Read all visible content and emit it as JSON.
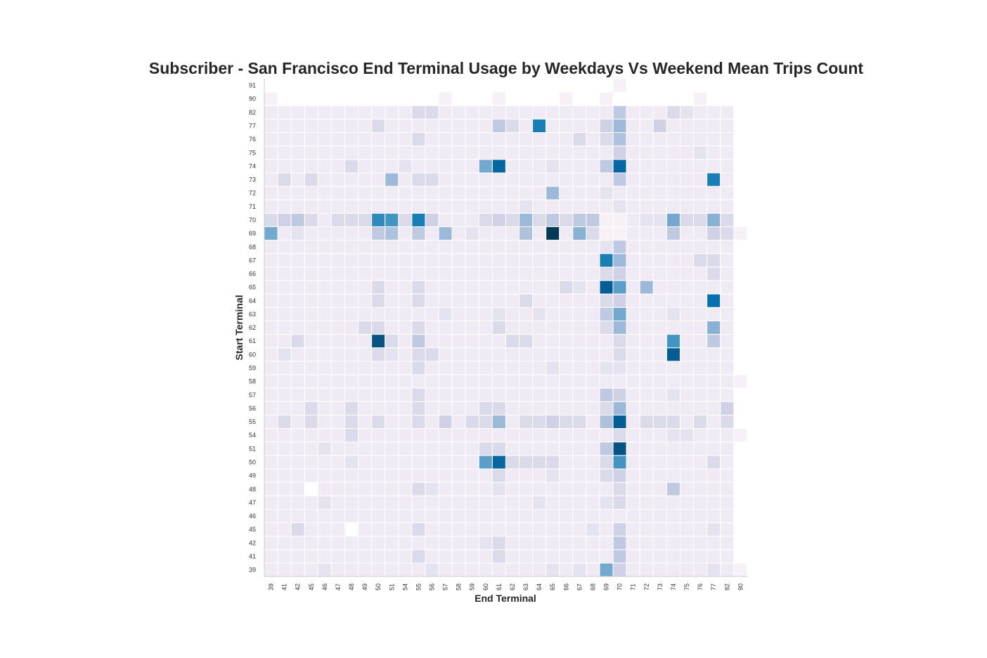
{
  "chart_data": {
    "type": "heatmap",
    "title": "Subscriber - San Francisco End Terminal Usage by Weekdays Vs Weekend Mean Trips Count",
    "xlabel": "End Terminal",
    "ylabel": "Start Terminal",
    "x_categories": [
      "39",
      "41",
      "42",
      "45",
      "46",
      "47",
      "48",
      "49",
      "50",
      "51",
      "54",
      "55",
      "56",
      "57",
      "58",
      "59",
      "60",
      "61",
      "62",
      "63",
      "64",
      "65",
      "66",
      "67",
      "68",
      "69",
      "70",
      "71",
      "72",
      "73",
      "74",
      "75",
      "76",
      "77",
      "82",
      "90"
    ],
    "y_categories": [
      "91",
      "90",
      "82",
      "77",
      "76",
      "75",
      "74",
      "73",
      "72",
      "71",
      "70",
      "69",
      "68",
      "67",
      "66",
      "65",
      "64",
      "63",
      "62",
      "61",
      "60",
      "59",
      "58",
      "57",
      "56",
      "55",
      "54",
      "51",
      "50",
      "49",
      "48",
      "47",
      "46",
      "45",
      "42",
      "41",
      "39"
    ],
    "default_value": 1,
    "vmax": 10,
    "cells": [
      {
        "y": "91",
        "x": "70",
        "v": 0.5
      },
      {
        "y": "90",
        "x": "39",
        "v": 0.5
      },
      {
        "y": "90",
        "x": "57",
        "v": 0.5
      },
      {
        "y": "90",
        "x": "61",
        "v": 0.5
      },
      {
        "y": "90",
        "x": "66",
        "v": 0.5
      },
      {
        "y": "90",
        "x": "69",
        "v": 0.5
      },
      {
        "y": "90",
        "x": "76",
        "v": 0.5
      },
      {
        "y": "82",
        "x": "55",
        "v": 2
      },
      {
        "y": "82",
        "x": "56",
        "v": 2
      },
      {
        "y": "82",
        "x": "70",
        "v": 3
      },
      {
        "y": "82",
        "x": "74",
        "v": 2
      },
      {
        "y": "82",
        "x": "75",
        "v": 1.5
      },
      {
        "y": "77",
        "x": "50",
        "v": 2
      },
      {
        "y": "77",
        "x": "61",
        "v": 3
      },
      {
        "y": "77",
        "x": "62",
        "v": 2
      },
      {
        "y": "77",
        "x": "64",
        "v": 7
      },
      {
        "y": "77",
        "x": "69",
        "v": 2.5
      },
      {
        "y": "77",
        "x": "70",
        "v": 4
      },
      {
        "y": "77",
        "x": "73",
        "v": 2.5
      },
      {
        "y": "76",
        "x": "55",
        "v": 2
      },
      {
        "y": "76",
        "x": "67",
        "v": 2
      },
      {
        "y": "76",
        "x": "69",
        "v": 2
      },
      {
        "y": "76",
        "x": "70",
        "v": 3.5
      },
      {
        "y": "75",
        "x": "70",
        "v": 2.5
      },
      {
        "y": "75",
        "x": "76",
        "v": 1.5
      },
      {
        "y": "74",
        "x": "48",
        "v": 2
      },
      {
        "y": "74",
        "x": "54",
        "v": 1.5
      },
      {
        "y": "74",
        "x": "60",
        "v": 5
      },
      {
        "y": "74",
        "x": "61",
        "v": 8
      },
      {
        "y": "74",
        "x": "65",
        "v": 1.5
      },
      {
        "y": "74",
        "x": "69",
        "v": 3
      },
      {
        "y": "74",
        "x": "70",
        "v": 8
      },
      {
        "y": "73",
        "x": "41",
        "v": 2
      },
      {
        "y": "73",
        "x": "45",
        "v": 2
      },
      {
        "y": "73",
        "x": "51",
        "v": 4
      },
      {
        "y": "73",
        "x": "55",
        "v": 2
      },
      {
        "y": "73",
        "x": "56",
        "v": 2
      },
      {
        "y": "73",
        "x": "70",
        "v": 3
      },
      {
        "y": "73",
        "x": "77",
        "v": 7
      },
      {
        "y": "72",
        "x": "65",
        "v": 4
      },
      {
        "y": "72",
        "x": "69",
        "v": 1.5
      },
      {
        "y": "71",
        "x": "63",
        "v": 1.5
      },
      {
        "y": "71",
        "x": "70",
        "v": 1.5
      },
      {
        "y": "70",
        "x": "39",
        "v": 2
      },
      {
        "y": "70",
        "x": "41",
        "v": 2.5
      },
      {
        "y": "70",
        "x": "42",
        "v": 3
      },
      {
        "y": "70",
        "x": "45",
        "v": 2
      },
      {
        "y": "70",
        "x": "47",
        "v": 2
      },
      {
        "y": "70",
        "x": "48",
        "v": 2
      },
      {
        "y": "70",
        "x": "49",
        "v": 2
      },
      {
        "y": "70",
        "x": "50",
        "v": 6.5
      },
      {
        "y": "70",
        "x": "51",
        "v": 6
      },
      {
        "y": "70",
        "x": "54",
        "v": 2
      },
      {
        "y": "70",
        "x": "55",
        "v": 7
      },
      {
        "y": "70",
        "x": "56",
        "v": 2.5
      },
      {
        "y": "70",
        "x": "60",
        "v": 2
      },
      {
        "y": "70",
        "x": "61",
        "v": 2.5
      },
      {
        "y": "70",
        "x": "62",
        "v": 2
      },
      {
        "y": "70",
        "x": "63",
        "v": 4
      },
      {
        "y": "70",
        "x": "64",
        "v": 2
      },
      {
        "y": "70",
        "x": "65",
        "v": 3
      },
      {
        "y": "70",
        "x": "66",
        "v": 2
      },
      {
        "y": "70",
        "x": "67",
        "v": 3
      },
      {
        "y": "70",
        "x": "68",
        "v": 3
      },
      {
        "y": "70",
        "x": "69",
        "v": 0.5
      },
      {
        "y": "70",
        "x": "70",
        "v": 0.5
      },
      {
        "y": "70",
        "x": "72",
        "v": 1.5
      },
      {
        "y": "70",
        "x": "73",
        "v": 1.5
      },
      {
        "y": "70",
        "x": "74",
        "v": 5
      },
      {
        "y": "70",
        "x": "75",
        "v": 2
      },
      {
        "y": "70",
        "x": "76",
        "v": 2
      },
      {
        "y": "70",
        "x": "77",
        "v": 4.5
      },
      {
        "y": "70",
        "x": "82",
        "v": 2
      },
      {
        "y": "69",
        "x": "39",
        "v": 5
      },
      {
        "y": "69",
        "x": "42",
        "v": 1.5
      },
      {
        "y": "69",
        "x": "50",
        "v": 3
      },
      {
        "y": "69",
        "x": "51",
        "v": 3.5
      },
      {
        "y": "69",
        "x": "55",
        "v": 3
      },
      {
        "y": "69",
        "x": "57",
        "v": 4
      },
      {
        "y": "69",
        "x": "59",
        "v": 1.5
      },
      {
        "y": "69",
        "x": "63",
        "v": 3.5
      },
      {
        "y": "69",
        "x": "65",
        "v": 10
      },
      {
        "y": "69",
        "x": "67",
        "v": 4.5
      },
      {
        "y": "69",
        "x": "68",
        "v": 2
      },
      {
        "y": "69",
        "x": "69",
        "v": 0.5
      },
      {
        "y": "69",
        "x": "70",
        "v": 0.5
      },
      {
        "y": "69",
        "x": "74",
        "v": 3
      },
      {
        "y": "69",
        "x": "77",
        "v": 2.5
      },
      {
        "y": "69",
        "x": "82",
        "v": 2
      },
      {
        "y": "69",
        "x": "90",
        "v": 0.5
      },
      {
        "y": "68",
        "x": "69",
        "v": 1.5
      },
      {
        "y": "68",
        "x": "70",
        "v": 3
      },
      {
        "y": "67",
        "x": "69",
        "v": 7
      },
      {
        "y": "67",
        "x": "70",
        "v": 4
      },
      {
        "y": "67",
        "x": "76",
        "v": 2
      },
      {
        "y": "67",
        "x": "77",
        "v": 2
      },
      {
        "y": "66",
        "x": "69",
        "v": 2
      },
      {
        "y": "66",
        "x": "70",
        "v": 2.5
      },
      {
        "y": "66",
        "x": "77",
        "v": 2
      },
      {
        "y": "65",
        "x": "50",
        "v": 2
      },
      {
        "y": "65",
        "x": "55",
        "v": 2
      },
      {
        "y": "65",
        "x": "66",
        "v": 2
      },
      {
        "y": "65",
        "x": "67",
        "v": 1.5
      },
      {
        "y": "65",
        "x": "69",
        "v": 8.5
      },
      {
        "y": "65",
        "x": "70",
        "v": 5.5
      },
      {
        "y": "65",
        "x": "72",
        "v": 4
      },
      {
        "y": "64",
        "x": "50",
        "v": 2
      },
      {
        "y": "64",
        "x": "55",
        "v": 2
      },
      {
        "y": "64",
        "x": "63",
        "v": 2
      },
      {
        "y": "64",
        "x": "69",
        "v": 2
      },
      {
        "y": "64",
        "x": "70",
        "v": 2.5
      },
      {
        "y": "64",
        "x": "77",
        "v": 7.5
      },
      {
        "y": "63",
        "x": "57",
        "v": 1.5
      },
      {
        "y": "63",
        "x": "61",
        "v": 1.5
      },
      {
        "y": "63",
        "x": "64",
        "v": 1.5
      },
      {
        "y": "63",
        "x": "69",
        "v": 3
      },
      {
        "y": "63",
        "x": "70",
        "v": 5
      },
      {
        "y": "63",
        "x": "74",
        "v": 1.5
      },
      {
        "y": "62",
        "x": "49",
        "v": 2
      },
      {
        "y": "62",
        "x": "50",
        "v": 2
      },
      {
        "y": "62",
        "x": "55",
        "v": 2
      },
      {
        "y": "62",
        "x": "61",
        "v": 2
      },
      {
        "y": "62",
        "x": "69",
        "v": 2
      },
      {
        "y": "62",
        "x": "70",
        "v": 4
      },
      {
        "y": "62",
        "x": "77",
        "v": 4.5
      },
      {
        "y": "61",
        "x": "42",
        "v": 2
      },
      {
        "y": "61",
        "x": "50",
        "v": 9
      },
      {
        "y": "61",
        "x": "51",
        "v": 2
      },
      {
        "y": "61",
        "x": "55",
        "v": 3
      },
      {
        "y": "61",
        "x": "62",
        "v": 2
      },
      {
        "y": "61",
        "x": "63",
        "v": 2
      },
      {
        "y": "61",
        "x": "70",
        "v": 2
      },
      {
        "y": "61",
        "x": "74",
        "v": 6
      },
      {
        "y": "61",
        "x": "77",
        "v": 3
      },
      {
        "y": "60",
        "x": "41",
        "v": 1.5
      },
      {
        "y": "60",
        "x": "50",
        "v": 2
      },
      {
        "y": "60",
        "x": "51",
        "v": 1.5
      },
      {
        "y": "60",
        "x": "55",
        "v": 2
      },
      {
        "y": "60",
        "x": "56",
        "v": 2
      },
      {
        "y": "60",
        "x": "70",
        "v": 2
      },
      {
        "y": "60",
        "x": "74",
        "v": 8.5
      },
      {
        "y": "59",
        "x": "55",
        "v": 2
      },
      {
        "y": "59",
        "x": "65",
        "v": 1.5
      },
      {
        "y": "59",
        "x": "69",
        "v": 1.5
      },
      {
        "y": "59",
        "x": "70",
        "v": 1.5
      },
      {
        "y": "58",
        "x": "90",
        "v": 0.5
      },
      {
        "y": "57",
        "x": "55",
        "v": 2
      },
      {
        "y": "57",
        "x": "69",
        "v": 3
      },
      {
        "y": "57",
        "x": "70",
        "v": 2.5
      },
      {
        "y": "57",
        "x": "74",
        "v": 1.5
      },
      {
        "y": "56",
        "x": "45",
        "v": 2
      },
      {
        "y": "56",
        "x": "48",
        "v": 2
      },
      {
        "y": "56",
        "x": "55",
        "v": 2
      },
      {
        "y": "56",
        "x": "60",
        "v": 2
      },
      {
        "y": "56",
        "x": "61",
        "v": 2
      },
      {
        "y": "56",
        "x": "69",
        "v": 2
      },
      {
        "y": "56",
        "x": "70",
        "v": 4
      },
      {
        "y": "56",
        "x": "82",
        "v": 2.5
      },
      {
        "y": "55",
        "x": "41",
        "v": 2
      },
      {
        "y": "55",
        "x": "45",
        "v": 2
      },
      {
        "y": "55",
        "x": "48",
        "v": 2
      },
      {
        "y": "55",
        "x": "50",
        "v": 2
      },
      {
        "y": "55",
        "x": "55",
        "v": 2
      },
      {
        "y": "55",
        "x": "57",
        "v": 2.5
      },
      {
        "y": "55",
        "x": "59",
        "v": 2
      },
      {
        "y": "55",
        "x": "60",
        "v": 2
      },
      {
        "y": "55",
        "x": "61",
        "v": 4
      },
      {
        "y": "55",
        "x": "63",
        "v": 2
      },
      {
        "y": "55",
        "x": "64",
        "v": 2
      },
      {
        "y": "55",
        "x": "65",
        "v": 2.5
      },
      {
        "y": "55",
        "x": "66",
        "v": 2
      },
      {
        "y": "55",
        "x": "67",
        "v": 2
      },
      {
        "y": "55",
        "x": "69",
        "v": 3.5
      },
      {
        "y": "55",
        "x": "70",
        "v": 8.5
      },
      {
        "y": "55",
        "x": "72",
        "v": 2
      },
      {
        "y": "55",
        "x": "73",
        "v": 2
      },
      {
        "y": "55",
        "x": "74",
        "v": 2
      },
      {
        "y": "55",
        "x": "76",
        "v": 2
      },
      {
        "y": "55",
        "x": "82",
        "v": 2
      },
      {
        "y": "54",
        "x": "48",
        "v": 2
      },
      {
        "y": "54",
        "x": "70",
        "v": 2
      },
      {
        "y": "54",
        "x": "74",
        "v": 1.5
      },
      {
        "y": "54",
        "x": "75",
        "v": 1.5
      },
      {
        "y": "54",
        "x": "90",
        "v": 0.5
      },
      {
        "y": "51",
        "x": "46",
        "v": 1.5
      },
      {
        "y": "51",
        "x": "60",
        "v": 2
      },
      {
        "y": "51",
        "x": "61",
        "v": 2
      },
      {
        "y": "51",
        "x": "69",
        "v": 3
      },
      {
        "y": "51",
        "x": "70",
        "v": 9
      },
      {
        "y": "50",
        "x": "48",
        "v": 1.5
      },
      {
        "y": "50",
        "x": "60",
        "v": 5.5
      },
      {
        "y": "50",
        "x": "61",
        "v": 8
      },
      {
        "y": "50",
        "x": "62",
        "v": 2
      },
      {
        "y": "50",
        "x": "63",
        "v": 2
      },
      {
        "y": "50",
        "x": "64",
        "v": 2
      },
      {
        "y": "50",
        "x": "65",
        "v": 2
      },
      {
        "y": "50",
        "x": "69",
        "v": 2
      },
      {
        "y": "50",
        "x": "70",
        "v": 6
      },
      {
        "y": "50",
        "x": "77",
        "v": 2
      },
      {
        "y": "49",
        "x": "61",
        "v": 2
      },
      {
        "y": "49",
        "x": "65",
        "v": 1.5
      },
      {
        "y": "49",
        "x": "69",
        "v": 2
      },
      {
        "y": "49",
        "x": "70",
        "v": 2.5
      },
      {
        "y": "48",
        "x": "45",
        "v": 0
      },
      {
        "y": "48",
        "x": "55",
        "v": 2
      },
      {
        "y": "48",
        "x": "56",
        "v": 1.5
      },
      {
        "y": "48",
        "x": "61",
        "v": 1.5
      },
      {
        "y": "48",
        "x": "70",
        "v": 2
      },
      {
        "y": "48",
        "x": "74",
        "v": 3
      },
      {
        "y": "47",
        "x": "46",
        "v": 1.5
      },
      {
        "y": "47",
        "x": "64",
        "v": 1.5
      },
      {
        "y": "47",
        "x": "69",
        "v": 1.5
      },
      {
        "y": "47",
        "x": "70",
        "v": 2
      },
      {
        "y": "45",
        "x": "42",
        "v": 2
      },
      {
        "y": "45",
        "x": "48",
        "v": 0
      },
      {
        "y": "45",
        "x": "55",
        "v": 2
      },
      {
        "y": "45",
        "x": "68",
        "v": 1.5
      },
      {
        "y": "45",
        "x": "70",
        "v": 2.5
      },
      {
        "y": "45",
        "x": "77",
        "v": 1.5
      },
      {
        "y": "42",
        "x": "60",
        "v": 1.5
      },
      {
        "y": "42",
        "x": "61",
        "v": 2
      },
      {
        "y": "42",
        "x": "70",
        "v": 3
      },
      {
        "y": "41",
        "x": "55",
        "v": 2
      },
      {
        "y": "41",
        "x": "61",
        "v": 2
      },
      {
        "y": "41",
        "x": "70",
        "v": 3
      },
      {
        "y": "39",
        "x": "46",
        "v": 1.5
      },
      {
        "y": "39",
        "x": "56",
        "v": 1.5
      },
      {
        "y": "39",
        "x": "65",
        "v": 1.5
      },
      {
        "y": "39",
        "x": "67",
        "v": 1.5
      },
      {
        "y": "39",
        "x": "69",
        "v": 5
      },
      {
        "y": "39",
        "x": "70",
        "v": 2.5
      },
      {
        "y": "39",
        "x": "77",
        "v": 1.5
      },
      {
        "y": "39",
        "x": "90",
        "v": 0.5
      }
    ],
    "colormap": [
      "#fff7fb",
      "#ece7f2",
      "#d0d1e6",
      "#a6bddb",
      "#74a9cf",
      "#3690c0",
      "#0570b0",
      "#045a8d",
      "#023858"
    ],
    "grid": false,
    "legend": "none"
  }
}
